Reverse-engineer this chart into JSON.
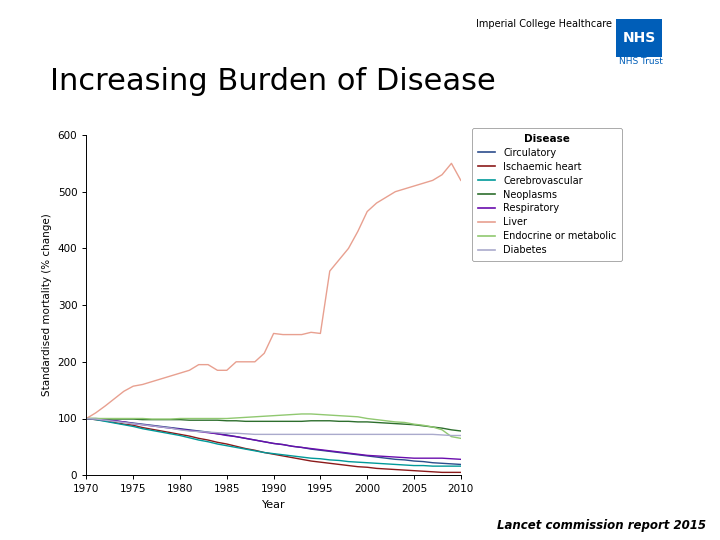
{
  "title": "Increasing Burden of Disease",
  "subtitle": "Lancet commission report 2015",
  "xlabel": "Year",
  "ylabel": "Standardised mortality (% change)",
  "xlim": [
    1970,
    2010
  ],
  "ylim": [
    0,
    600
  ],
  "yticks": [
    0,
    100,
    200,
    300,
    400,
    500,
    600
  ],
  "xticks": [
    1970,
    1975,
    1980,
    1985,
    1990,
    1995,
    2000,
    2005,
    2010
  ],
  "background_color": "#ffffff",
  "series": {
    "Circulatory": {
      "color": "#2c4d8c",
      "years": [
        1970,
        1971,
        1972,
        1973,
        1974,
        1975,
        1976,
        1977,
        1978,
        1979,
        1980,
        1981,
        1982,
        1983,
        1984,
        1985,
        1986,
        1987,
        1988,
        1989,
        1990,
        1991,
        1992,
        1993,
        1994,
        1995,
        1996,
        1997,
        1998,
        1999,
        2000,
        2001,
        2002,
        2003,
        2004,
        2005,
        2006,
        2007,
        2008,
        2009,
        2010
      ],
      "values": [
        100,
        99,
        97,
        96,
        94,
        92,
        90,
        88,
        86,
        84,
        82,
        80,
        78,
        76,
        73,
        71,
        68,
        65,
        62,
        59,
        56,
        54,
        51,
        49,
        46,
        44,
        42,
        40,
        38,
        36,
        34,
        32,
        30,
        28,
        27,
        25,
        24,
        22,
        21,
        20,
        19
      ]
    },
    "Ischaemic heart": {
      "color": "#8b1a1a",
      "years": [
        1970,
        1971,
        1972,
        1973,
        1974,
        1975,
        1976,
        1977,
        1978,
        1979,
        1980,
        1981,
        1982,
        1983,
        1984,
        1985,
        1986,
        1987,
        1988,
        1989,
        1990,
        1991,
        1992,
        1993,
        1994,
        1995,
        1996,
        1997,
        1998,
        1999,
        2000,
        2001,
        2002,
        2003,
        2004,
        2005,
        2006,
        2007,
        2008,
        2009,
        2010
      ],
      "values": [
        100,
        98,
        96,
        93,
        90,
        88,
        84,
        81,
        78,
        75,
        72,
        69,
        65,
        62,
        58,
        55,
        51,
        47,
        44,
        40,
        37,
        34,
        31,
        28,
        25,
        23,
        21,
        19,
        17,
        15,
        14,
        12,
        11,
        10,
        9,
        8,
        7,
        6,
        5,
        5,
        5
      ]
    },
    "Cerebrovascular": {
      "color": "#009999",
      "years": [
        1970,
        1971,
        1972,
        1973,
        1974,
        1975,
        1976,
        1977,
        1978,
        1979,
        1980,
        1981,
        1982,
        1983,
        1984,
        1985,
        1986,
        1987,
        1988,
        1989,
        1990,
        1991,
        1992,
        1993,
        1994,
        1995,
        1996,
        1997,
        1998,
        1999,
        2000,
        2001,
        2002,
        2003,
        2004,
        2005,
        2006,
        2007,
        2008,
        2009,
        2010
      ],
      "values": [
        100,
        98,
        95,
        92,
        89,
        86,
        82,
        79,
        76,
        73,
        70,
        66,
        62,
        59,
        55,
        52,
        49,
        46,
        43,
        40,
        38,
        36,
        34,
        32,
        30,
        29,
        27,
        26,
        24,
        23,
        22,
        21,
        20,
        19,
        18,
        17,
        17,
        16,
        16,
        16,
        16
      ]
    },
    "Neoplasms": {
      "color": "#2d6e2d",
      "years": [
        1970,
        1971,
        1972,
        1973,
        1974,
        1975,
        1976,
        1977,
        1978,
        1979,
        1980,
        1981,
        1982,
        1983,
        1984,
        1985,
        1986,
        1987,
        1988,
        1989,
        1990,
        1991,
        1992,
        1993,
        1994,
        1995,
        1996,
        1997,
        1998,
        1999,
        2000,
        2001,
        2002,
        2003,
        2004,
        2005,
        2006,
        2007,
        2008,
        2009,
        2010
      ],
      "values": [
        100,
        100,
        99,
        99,
        99,
        99,
        98,
        98,
        98,
        98,
        98,
        97,
        97,
        97,
        97,
        96,
        96,
        95,
        95,
        95,
        95,
        95,
        95,
        95,
        96,
        96,
        96,
        95,
        95,
        94,
        94,
        93,
        92,
        91,
        90,
        89,
        87,
        85,
        83,
        80,
        78
      ]
    },
    "Respiratory": {
      "color": "#6a0dad",
      "years": [
        1970,
        1971,
        1972,
        1973,
        1974,
        1975,
        1976,
        1977,
        1978,
        1979,
        1980,
        1981,
        1982,
        1983,
        1984,
        1985,
        1986,
        1987,
        1988,
        1989,
        1990,
        1991,
        1992,
        1993,
        1994,
        1995,
        1996,
        1997,
        1998,
        1999,
        2000,
        2001,
        2002,
        2003,
        2004,
        2005,
        2006,
        2007,
        2008,
        2009,
        2010
      ],
      "values": [
        100,
        99,
        97,
        96,
        94,
        91,
        89,
        87,
        85,
        83,
        81,
        79,
        77,
        75,
        73,
        70,
        68,
        65,
        62,
        59,
        56,
        54,
        51,
        49,
        47,
        45,
        43,
        41,
        39,
        37,
        35,
        34,
        33,
        32,
        31,
        30,
        30,
        30,
        30,
        29,
        28
      ]
    },
    "Liver": {
      "color": "#e8a090",
      "years": [
        1970,
        1971,
        1972,
        1973,
        1974,
        1975,
        1976,
        1977,
        1978,
        1979,
        1980,
        1981,
        1982,
        1983,
        1984,
        1985,
        1986,
        1987,
        1988,
        1989,
        1990,
        1991,
        1992,
        1993,
        1994,
        1995,
        1996,
        1997,
        1998,
        1999,
        2000,
        2001,
        2002,
        2003,
        2004,
        2005,
        2006,
        2007,
        2008,
        2009,
        2010
      ],
      "values": [
        100,
        110,
        122,
        135,
        148,
        157,
        160,
        165,
        170,
        175,
        180,
        185,
        195,
        195,
        185,
        185,
        200,
        200,
        200,
        215,
        250,
        248,
        248,
        248,
        252,
        250,
        360,
        380,
        400,
        430,
        465,
        480,
        490,
        500,
        505,
        510,
        515,
        520,
        530,
        550,
        520
      ]
    },
    "Endocrine or metabolic": {
      "color": "#90c870",
      "years": [
        1970,
        1971,
        1972,
        1973,
        1974,
        1975,
        1976,
        1977,
        1978,
        1979,
        1980,
        1981,
        1982,
        1983,
        1984,
        1985,
        1986,
        1987,
        1988,
        1989,
        1990,
        1991,
        1992,
        1993,
        1994,
        1995,
        1996,
        1997,
        1998,
        1999,
        2000,
        2001,
        2002,
        2003,
        2004,
        2005,
        2006,
        2007,
        2008,
        2009,
        2010
      ],
      "values": [
        100,
        100,
        100,
        100,
        100,
        100,
        100,
        99,
        99,
        99,
        100,
        100,
        100,
        100,
        100,
        100,
        101,
        102,
        103,
        104,
        105,
        106,
        107,
        108,
        108,
        107,
        106,
        105,
        104,
        103,
        100,
        98,
        96,
        94,
        93,
        90,
        88,
        85,
        80,
        68,
        65
      ]
    },
    "Diabetes": {
      "color": "#aaaacc",
      "years": [
        1970,
        1971,
        1972,
        1973,
        1974,
        1975,
        1976,
        1977,
        1978,
        1979,
        1980,
        1981,
        1982,
        1983,
        1984,
        1985,
        1986,
        1987,
        1988,
        1989,
        1990,
        1991,
        1992,
        1993,
        1994,
        1995,
        1996,
        1997,
        1998,
        1999,
        2000,
        2001,
        2002,
        2003,
        2004,
        2005,
        2006,
        2007,
        2008,
        2009,
        2010
      ],
      "values": [
        100,
        99,
        97,
        95,
        93,
        91,
        89,
        87,
        85,
        83,
        80,
        78,
        77,
        76,
        75,
        74,
        74,
        73,
        72,
        72,
        72,
        72,
        72,
        72,
        72,
        72,
        72,
        72,
        72,
        72,
        72,
        72,
        72,
        72,
        72,
        72,
        72,
        72,
        71,
        70,
        70
      ]
    }
  },
  "legend_title": "Disease",
  "nhs_text": "Imperial College Healthcare",
  "nhs_trust": "NHS Trust",
  "nhs_color": "#005eb8"
}
